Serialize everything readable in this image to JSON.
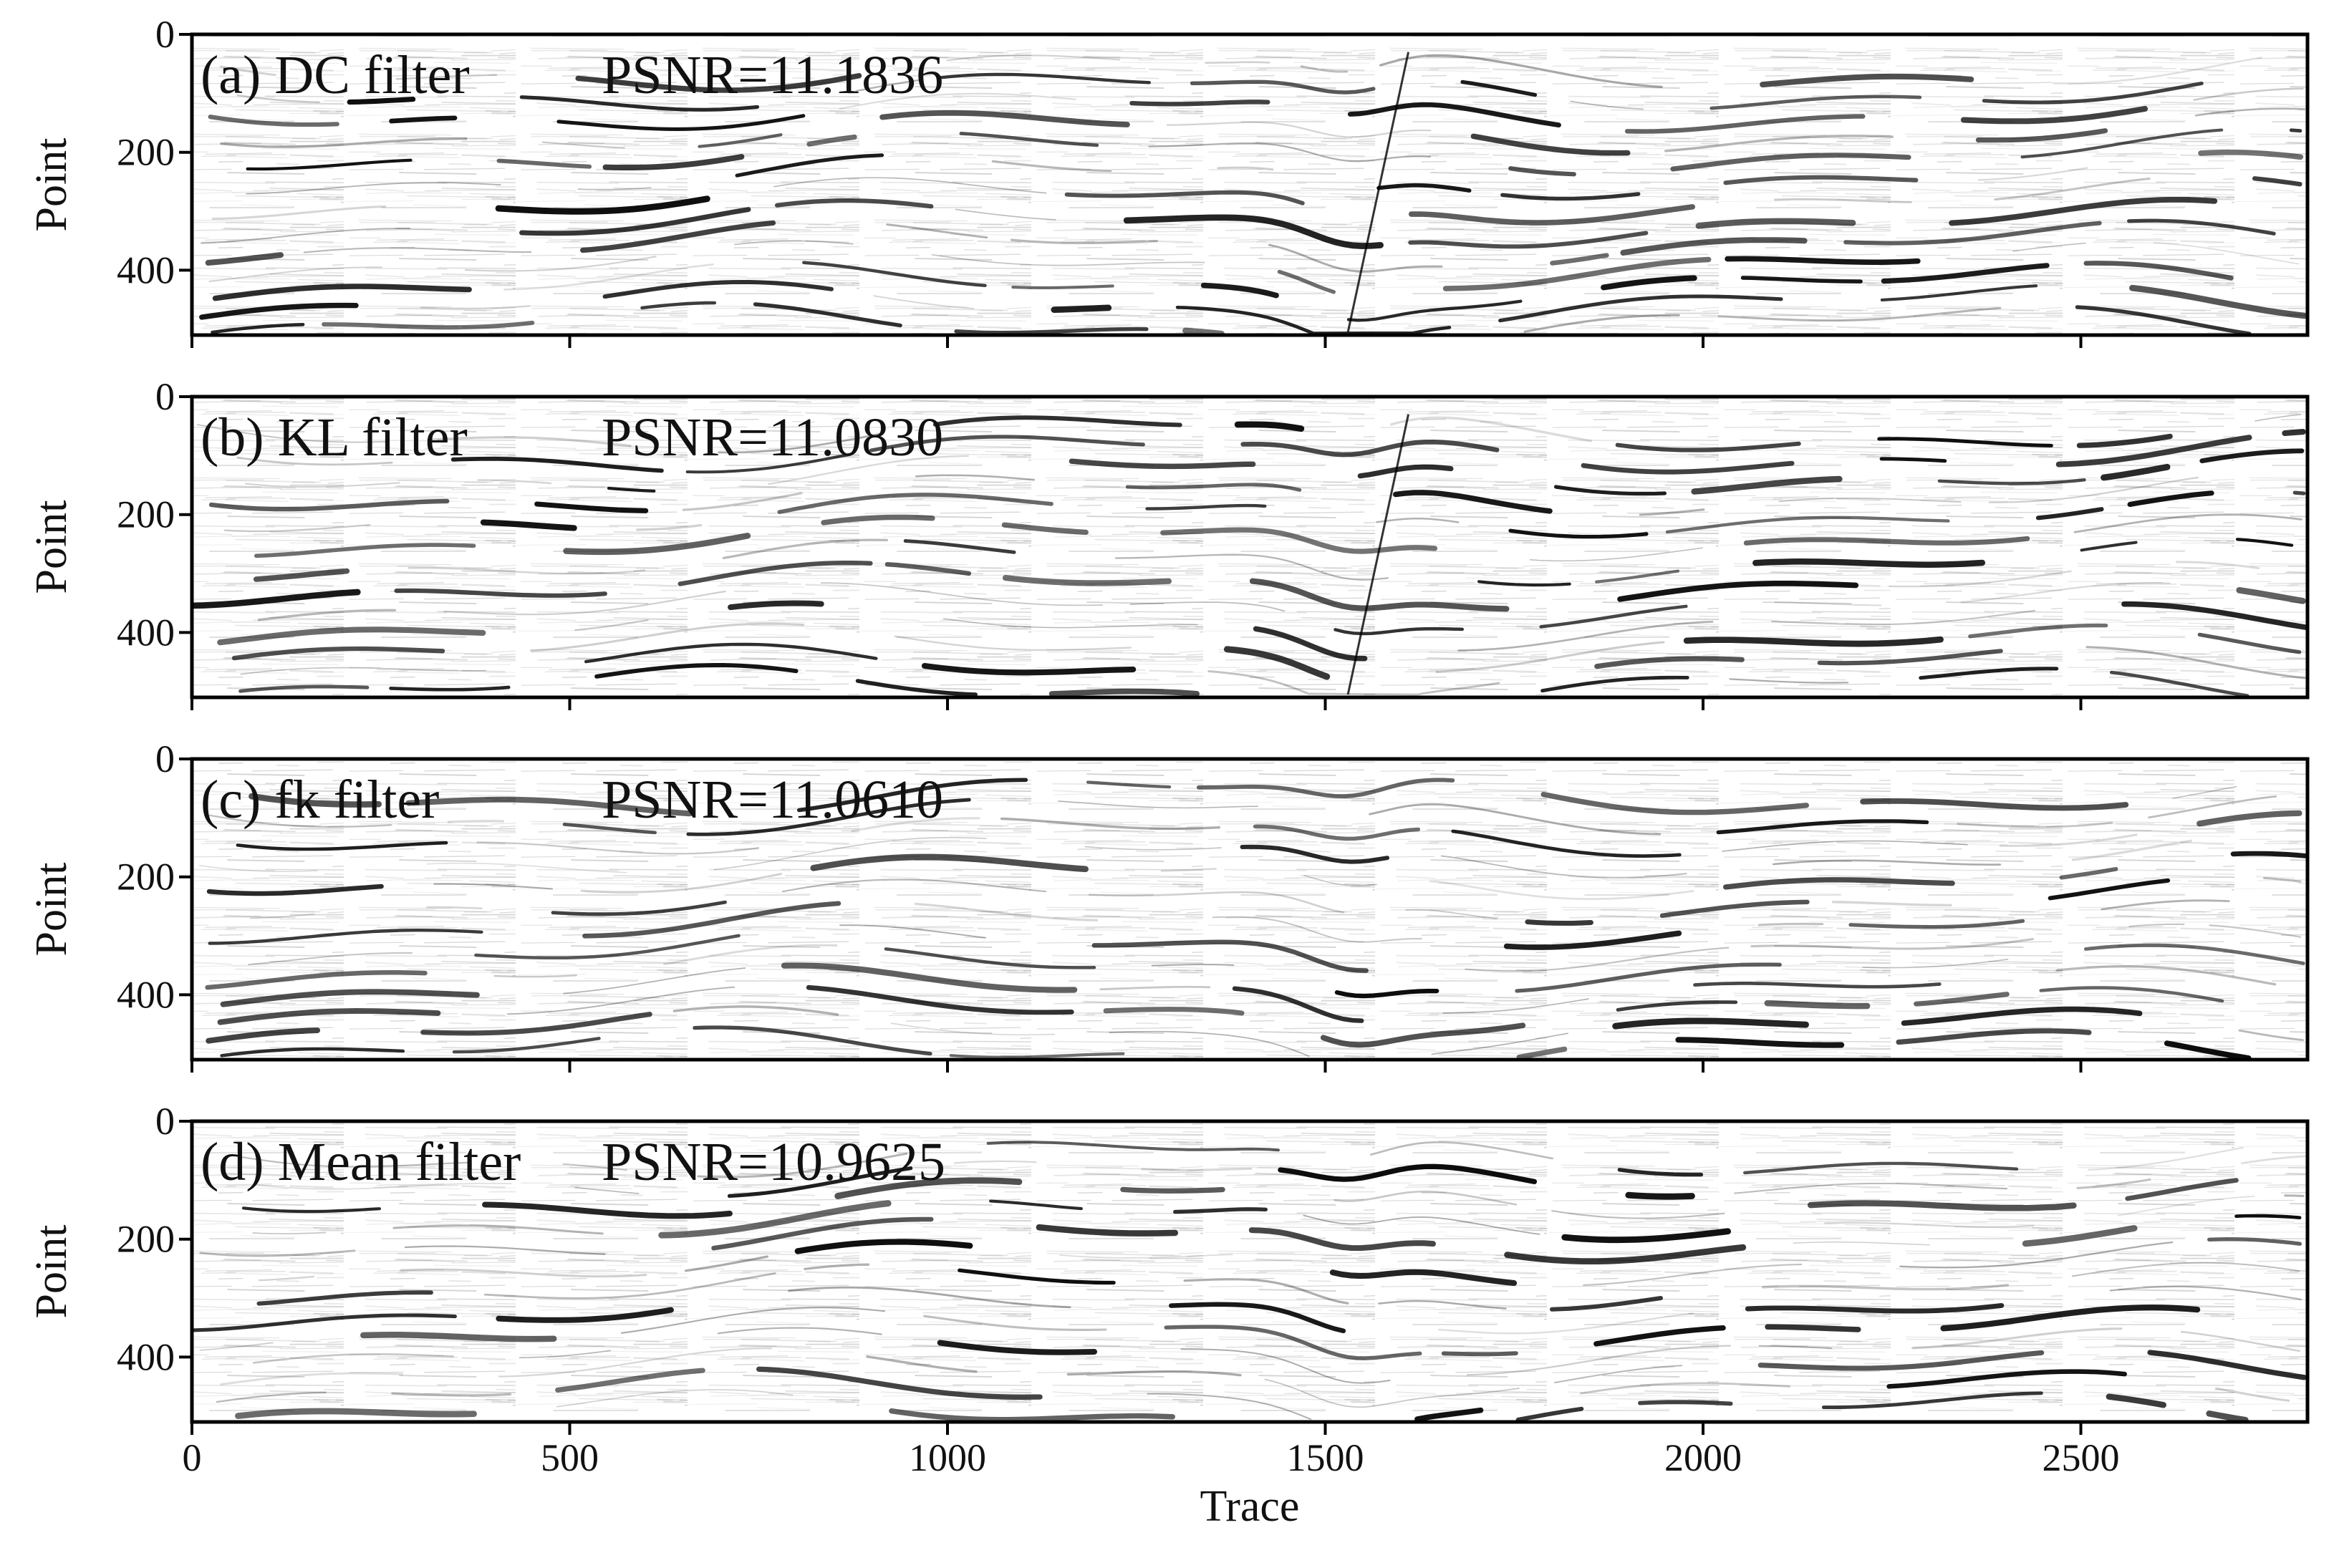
{
  "figure": {
    "background": "#ffffff",
    "ink": "#000000"
  },
  "chart_data": [
    {
      "type": "heatmap",
      "title": "(a) DC filter",
      "psnr_text": "PSNR=11.1836",
      "psnr": 11.1836,
      "xlabel": "",
      "ylabel": "Point",
      "xlim": [
        0,
        2800
      ],
      "ylim": [
        510,
        0
      ],
      "xticks": [
        0,
        500,
        1000,
        1500,
        2000,
        2500
      ],
      "yticks": [
        0,
        200,
        400
      ],
      "x_tick_labels_shown": false,
      "colormap": "grayscale (white=low, black=high)",
      "fault": true
    },
    {
      "type": "heatmap",
      "title": "(b) KL filter",
      "psnr_text": "PSNR=11.0830",
      "psnr": 11.083,
      "xlabel": "",
      "ylabel": "Point",
      "xlim": [
        0,
        2800
      ],
      "ylim": [
        510,
        0
      ],
      "xticks": [
        0,
        500,
        1000,
        1500,
        2000,
        2500
      ],
      "yticks": [
        0,
        200,
        400
      ],
      "x_tick_labels_shown": false,
      "colormap": "grayscale (white=low, black=high)",
      "fault": true
    },
    {
      "type": "heatmap",
      "title": "(c) fk filter",
      "psnr_text": "PSNR=11.0610",
      "psnr": 11.061,
      "xlabel": "",
      "ylabel": "Point",
      "xlim": [
        0,
        2800
      ],
      "ylim": [
        510,
        0
      ],
      "xticks": [
        0,
        500,
        1000,
        1500,
        2000,
        2500
      ],
      "yticks": [
        0,
        200,
        400
      ],
      "x_tick_labels_shown": false,
      "colormap": "grayscale (white=low, black=high)",
      "fault": false
    },
    {
      "type": "heatmap",
      "title": "(d) Mean filter",
      "psnr_text": "PSNR=10.9625",
      "psnr": 10.9625,
      "xlabel": "Trace",
      "ylabel": "Point",
      "xlim": [
        0,
        2800
      ],
      "ylim": [
        510,
        0
      ],
      "xticks": [
        0,
        500,
        1000,
        1500,
        2000,
        2500
      ],
      "yticks": [
        0,
        200,
        400
      ],
      "x_tick_labels_shown": true,
      "colormap": "grayscale (white=low, black=high)",
      "fault": false
    }
  ]
}
